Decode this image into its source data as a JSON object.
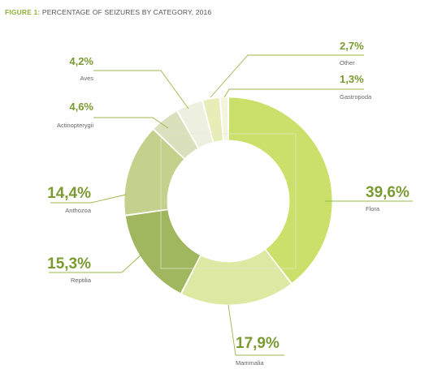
{
  "figure": {
    "label": "FIGURE 1:",
    "title": "PERCENTAGE OF SEIZURES BY CATEGORY, 2016"
  },
  "colors": {
    "figure_label": "#8fb33a",
    "title_text": "#555555",
    "value_text": "#7a9a32",
    "leader_line": "#9ab84c",
    "category_text": "#666666"
  },
  "chart_data": {
    "type": "pie",
    "style": "donut",
    "title": "PERCENTAGE OF SEIZURES BY CATEGORY, 2016",
    "decimal_separator": ",",
    "legend": "none",
    "slices": [
      {
        "label": "Flora",
        "value": 39.6,
        "value_label": "39,6%",
        "color": "#cbe06a"
      },
      {
        "label": "Mammalia",
        "value": 17.9,
        "value_label": "17,9%",
        "color": "#dde8a2"
      },
      {
        "label": "Reptilia",
        "value": 15.3,
        "value_label": "15,3%",
        "color": "#a0b65f"
      },
      {
        "label": "Anthozoa",
        "value": 14.4,
        "value_label": "14,4%",
        "color": "#c3d18c"
      },
      {
        "label": "Actinopterygii",
        "value": 4.6,
        "value_label": "4,6%",
        "color": "#dadfbc"
      },
      {
        "label": "Aves",
        "value": 4.2,
        "value_label": "4,2%",
        "color": "#eef0df"
      },
      {
        "label": "Other",
        "value": 2.7,
        "value_label": "2,7%",
        "color": "#e6edb6"
      },
      {
        "label": "Gastropoda",
        "value": 1.3,
        "value_label": "1,3%",
        "color": "#f3f5de"
      }
    ]
  }
}
